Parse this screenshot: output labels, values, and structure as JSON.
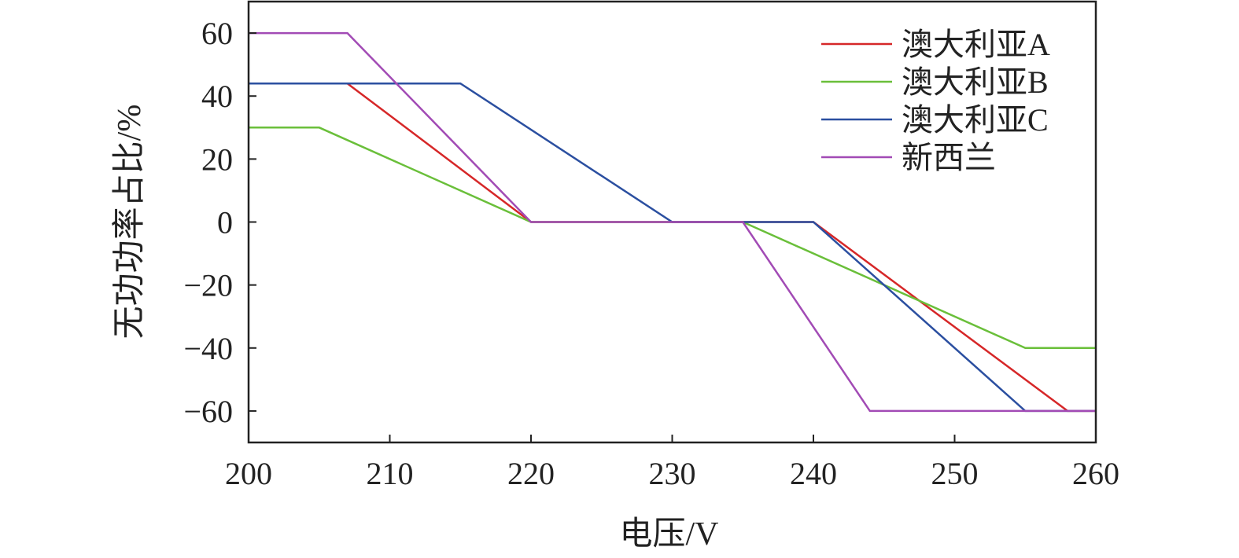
{
  "chart_data": {
    "type": "line",
    "xlabel": "电压/V",
    "ylabel": "无功功率占比/%",
    "xlim": [
      200,
      260
    ],
    "ylim": [
      -70,
      70
    ],
    "x_ticks": [
      200,
      210,
      220,
      230,
      240,
      250,
      260
    ],
    "y_ticks": [
      60,
      40,
      20,
      0,
      -20,
      -40,
      -60
    ],
    "y_tick_labels": [
      "60",
      "40",
      "20",
      "0",
      "−20",
      "−40",
      "−60"
    ],
    "grid": false,
    "legend_position": "top-right",
    "series": [
      {
        "name": "澳大利亚A",
        "color": "#d62728",
        "points": [
          [
            200,
            44
          ],
          [
            207,
            44
          ],
          [
            220,
            0
          ],
          [
            240,
            0
          ],
          [
            258,
            -60
          ],
          [
            260,
            -60
          ]
        ]
      },
      {
        "name": "澳大利亚B",
        "color": "#6abf3a",
        "points": [
          [
            200,
            30
          ],
          [
            205,
            30
          ],
          [
            220,
            0
          ],
          [
            235,
            0
          ],
          [
            255,
            -40
          ],
          [
            260,
            -40
          ]
        ]
      },
      {
        "name": "澳大利亚C",
        "color": "#2b4fa0",
        "points": [
          [
            200,
            44
          ],
          [
            215,
            44
          ],
          [
            230,
            0
          ],
          [
            240,
            0
          ],
          [
            255,
            -60
          ],
          [
            260,
            -60
          ]
        ]
      },
      {
        "name": "新西兰",
        "color": "#a24bb5",
        "points": [
          [
            200,
            60
          ],
          [
            207,
            60
          ],
          [
            220,
            0
          ],
          [
            235,
            0
          ],
          [
            244,
            -60
          ],
          [
            260,
            -60
          ]
        ]
      }
    ]
  }
}
